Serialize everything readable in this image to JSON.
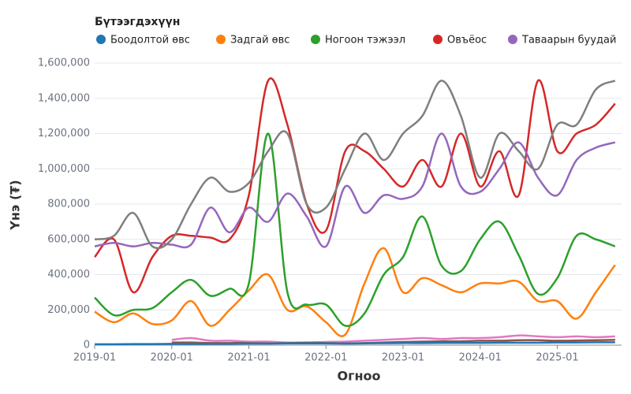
{
  "chart_data": {
    "type": "line",
    "legend_title": "Бүтээгдэхүүн",
    "xlabel": "Огноо",
    "ylabel": "Үнэ (₮)",
    "x": [
      "2019-01",
      "2019-04",
      "2019-07",
      "2019-10",
      "2020-01",
      "2020-04",
      "2020-07",
      "2020-10",
      "2021-01",
      "2021-04",
      "2021-07",
      "2021-10",
      "2022-01",
      "2022-04",
      "2022-07",
      "2022-10",
      "2023-01",
      "2023-04",
      "2023-07",
      "2023-10",
      "2024-01",
      "2024-04",
      "2024-07",
      "2024-10",
      "2025-01",
      "2025-04",
      "2025-07",
      "2025-10"
    ],
    "xlim": [
      "2019-01",
      "2025-11"
    ],
    "xticks": [
      "2019-01",
      "2020-01",
      "2021-01",
      "2022-01",
      "2023-01",
      "2024-01",
      "2025-01"
    ],
    "ylim": [
      0,
      1600000
    ],
    "yticks": [
      0,
      {
        "value": 200000,
        "label": "200,000"
      },
      {
        "value": 400000,
        "label": "400,000"
      },
      {
        "value": 600000,
        "label": "600,000"
      },
      {
        "value": 800000,
        "label": "800,000"
      },
      {
        "value": 1000000,
        "label": "1,000,000"
      },
      {
        "value": 1200000,
        "label": "1,200,000"
      },
      {
        "value": 1400000,
        "label": "1,400,000"
      },
      {
        "value": 1600000,
        "label": "1,600,000"
      }
    ],
    "grid": true,
    "series": [
      {
        "name": "Боодолтой өвс",
        "color": "#1f77b4",
        "values": [
          5000,
          5000,
          6000,
          6000,
          7000,
          7000,
          8000,
          8000,
          9000,
          9000,
          10000,
          10000,
          10000,
          9000,
          10000,
          11000,
          12000,
          12000,
          13000,
          13000,
          13000,
          14000,
          14000,
          14000,
          15000,
          15000,
          16000,
          16000
        ]
      },
      {
        "name": "Задгай өвс",
        "color": "#ff7f0e",
        "values": [
          190000,
          130000,
          180000,
          120000,
          140000,
          250000,
          110000,
          200000,
          310000,
          400000,
          200000,
          220000,
          130000,
          60000,
          350000,
          550000,
          300000,
          380000,
          340000,
          300000,
          350000,
          350000,
          360000,
          250000,
          250000,
          150000,
          300000,
          455000
        ]
      },
      {
        "name": "Ногоон тэжээл",
        "color": "#2ca02c",
        "values": [
          270000,
          170000,
          200000,
          210000,
          300000,
          370000,
          280000,
          320000,
          350000,
          1200000,
          300000,
          230000,
          230000,
          110000,
          180000,
          400000,
          500000,
          730000,
          450000,
          420000,
          600000,
          700000,
          510000,
          290000,
          380000,
          620000,
          600000,
          560000
        ]
      },
      {
        "name": "Овъёос",
        "color": "#d62728",
        "values": [
          500000,
          600000,
          300000,
          500000,
          620000,
          620000,
          610000,
          600000,
          850000,
          1500000,
          1250000,
          800000,
          650000,
          1100000,
          1100000,
          1000000,
          900000,
          1050000,
          900000,
          1200000,
          900000,
          1100000,
          850000,
          1500000,
          1100000,
          1200000,
          1250000,
          1370000
        ]
      },
      {
        "name": "Тавaарын буудай",
        "color": "#9467bd",
        "values": [
          560000,
          580000,
          560000,
          580000,
          570000,
          570000,
          780000,
          640000,
          780000,
          700000,
          860000,
          730000,
          560000,
          900000,
          750000,
          850000,
          830000,
          900000,
          1200000,
          900000,
          870000,
          1000000,
          1150000,
          950000,
          850000,
          1050000,
          1120000,
          1150000
        ]
      },
      {
        "color": "#7f7f7f",
        "values": [
          600000,
          620000,
          750000,
          560000,
          600000,
          800000,
          950000,
          870000,
          920000,
          1100000,
          1200000,
          800000,
          780000,
          1000000,
          1200000,
          1050000,
          1200000,
          1300000,
          1500000,
          1300000,
          950000,
          1200000,
          1100000,
          1000000,
          1250000,
          1250000,
          1450000,
          1500000
        ]
      },
      {
        "color": "#e377c2",
        "values": [
          null,
          null,
          null,
          null,
          30000,
          40000,
          25000,
          25000,
          20000,
          20000,
          15000,
          15000,
          18000,
          20000,
          25000,
          30000,
          35000,
          40000,
          35000,
          40000,
          40000,
          45000,
          55000,
          50000,
          45000,
          50000,
          45000,
          50000
        ]
      },
      {
        "color": "#8c564b",
        "values": [
          null,
          null,
          null,
          null,
          15000,
          15000,
          12000,
          12000,
          12000,
          10000,
          12000,
          14000,
          12000,
          10000,
          12000,
          15000,
          18000,
          20000,
          22000,
          22000,
          25000,
          25000,
          28000,
          28000,
          25000,
          26000,
          28000,
          30000
        ]
      }
    ]
  }
}
